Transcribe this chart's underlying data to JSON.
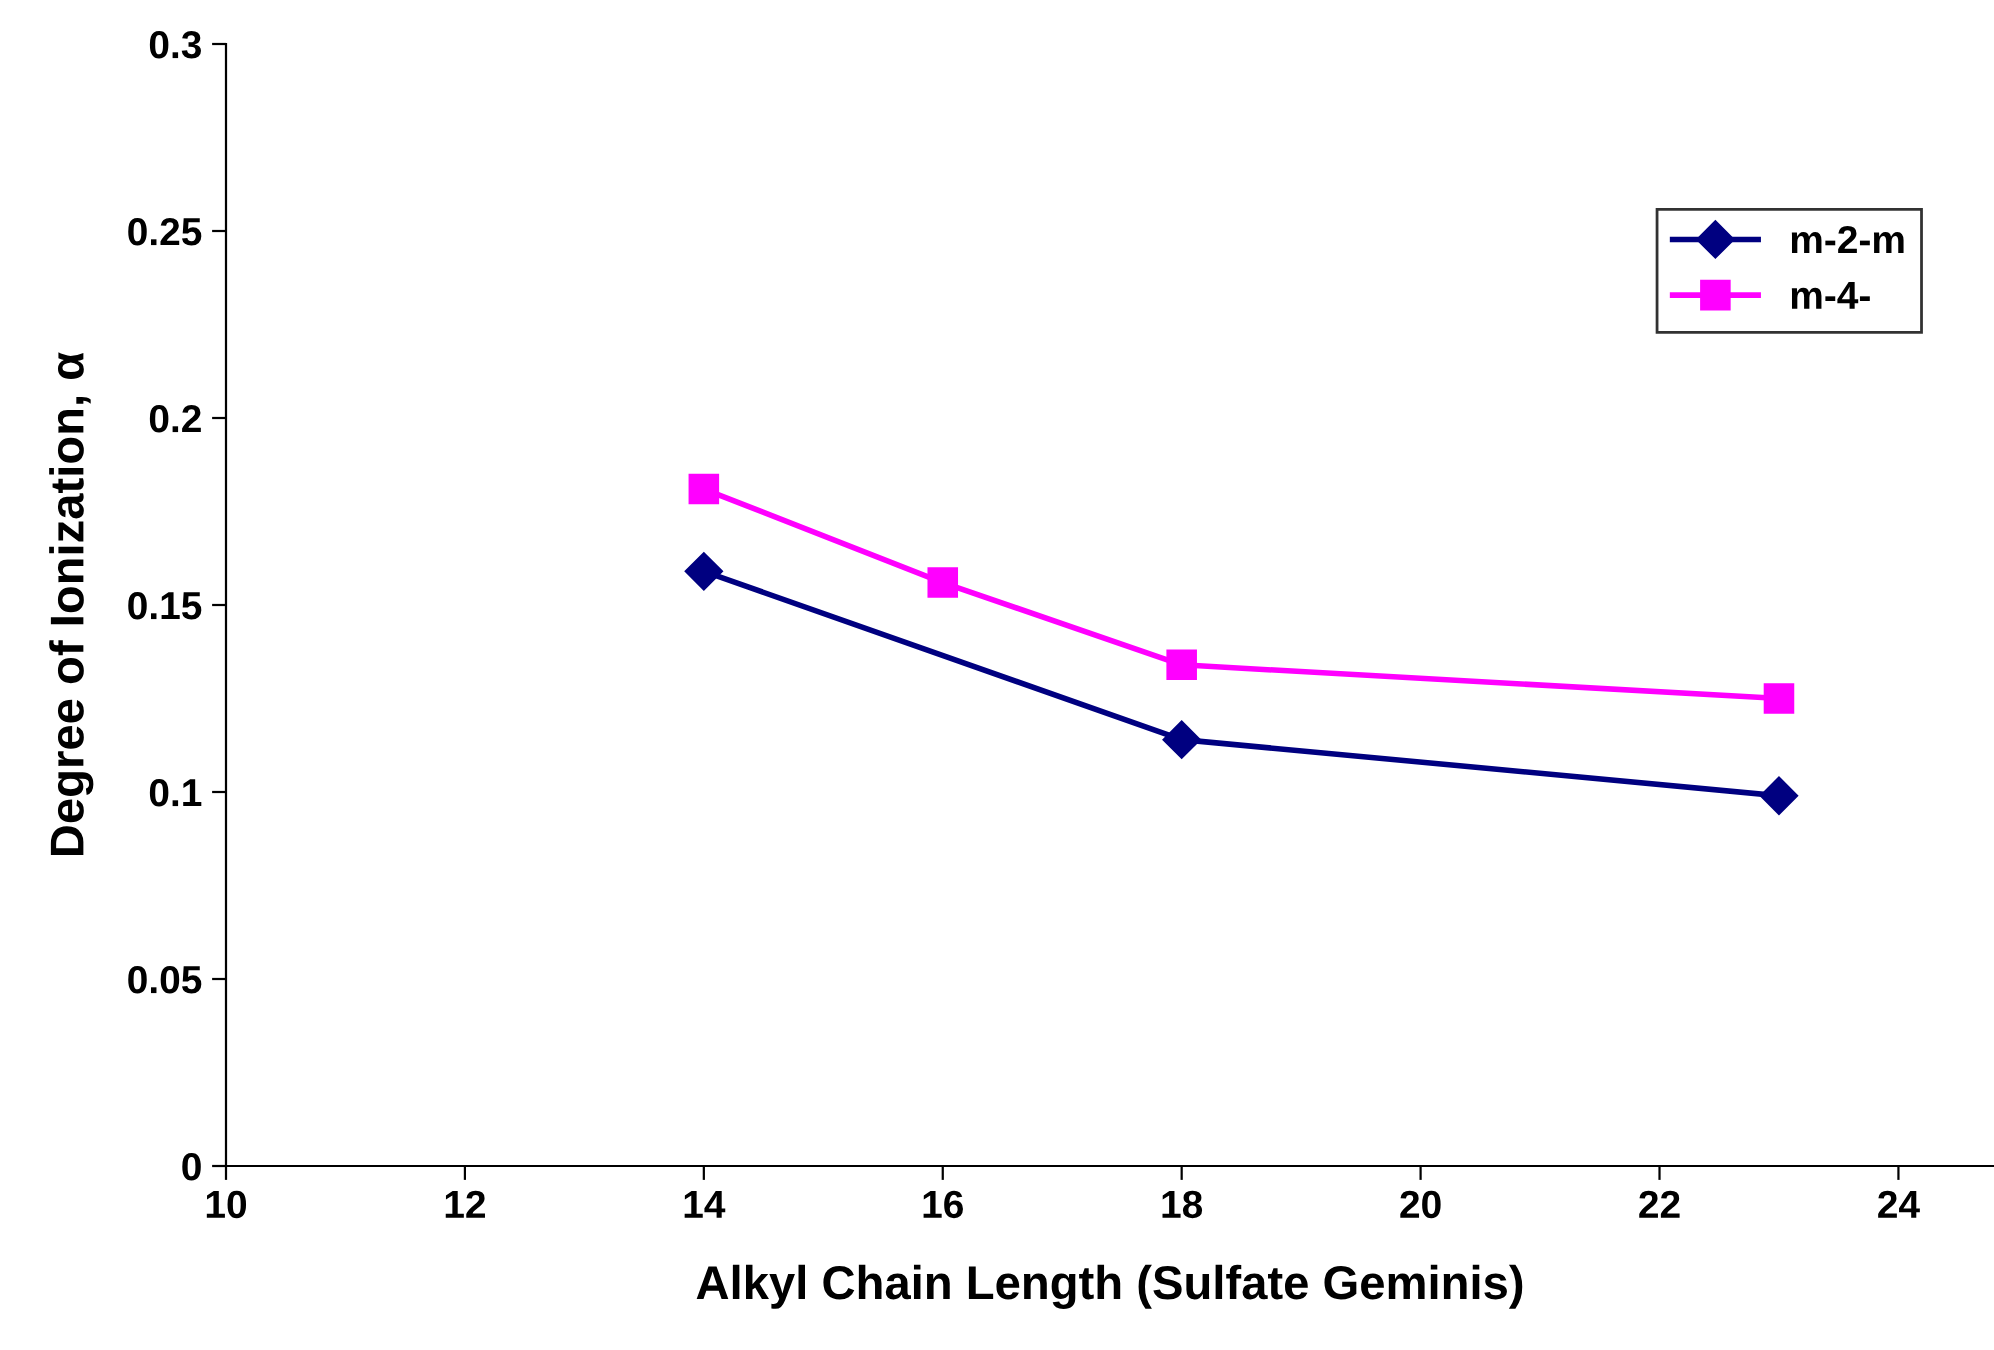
{
  "chart_data": {
    "type": "line",
    "xlabel": "Alkyl Chain Length (Sulfate Geminis)",
    "ylabel": "Degree of Ionization, α",
    "series": [
      {
        "name": "m-2-m",
        "color": "#000080",
        "marker": "diamond",
        "x": [
          14,
          18,
          23
        ],
        "values": [
          0.159,
          0.114,
          0.099
        ]
      },
      {
        "name": "m-4-",
        "color": "#ff00ff",
        "marker": "square",
        "x": [
          14,
          16,
          18,
          23
        ],
        "values": [
          0.181,
          0.156,
          0.134,
          0.125
        ]
      }
    ],
    "xlim": [
      10,
      24.8
    ],
    "xticks": [
      10,
      12,
      14,
      16,
      18,
      20,
      22,
      24
    ],
    "ylim": [
      0,
      0.3
    ],
    "yticks": [
      0,
      0.05,
      0.1,
      0.15,
      0.2,
      0.25,
      0.3
    ],
    "grid": false,
    "legend": "top right",
    "line_style": "solid"
  }
}
